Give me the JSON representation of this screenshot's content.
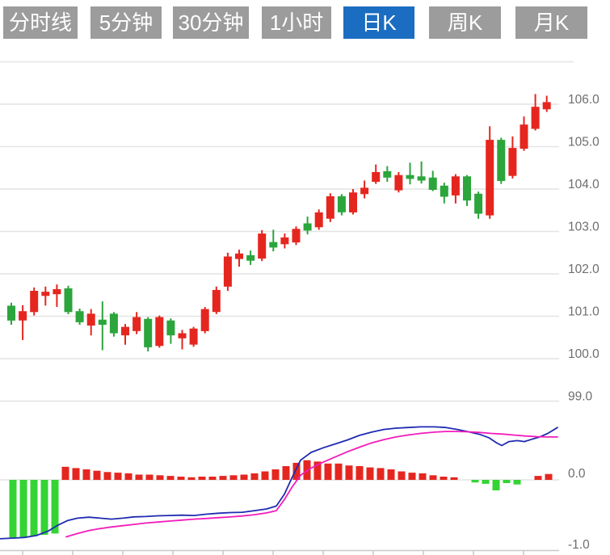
{
  "toolbar": {
    "tabs": [
      {
        "label": "分时线",
        "active": false
      },
      {
        "label": "5分钟",
        "active": false
      },
      {
        "label": "30分钟",
        "active": false
      },
      {
        "label": "1小时",
        "active": false
      },
      {
        "label": "日K",
        "active": true
      },
      {
        "label": "周K",
        "active": false
      },
      {
        "label": "月K",
        "active": false
      }
    ]
  },
  "colors": {
    "bull_red": "#e5261f",
    "bear_green": "#2ba53c",
    "macd_up_red": "#e5261f",
    "macd_down_green": "#33d433",
    "dif_line_blue": "#1f2bb1",
    "dea_line_magenta": "#f31bbb",
    "tab_bg": "#9c9c9c",
    "tab_active_bg": "#1b6dc1",
    "tab_text": "#ffffff",
    "grid": "#e4e4e4",
    "axis": "#c8c8c8",
    "label_text": "#6e6e6e"
  },
  "chart_data": [
    {
      "type": "candlestick",
      "name": "price-kline-pane",
      "interval": "日K",
      "title": "",
      "xlabel": "",
      "ylabel": "",
      "grid": true,
      "legend_position": "none",
      "ylim": [
        98.55,
        107.0
      ],
      "y_ticks": [
        106,
        105,
        104,
        103,
        102,
        101,
        100,
        99
      ],
      "y_axis_labels": [
        "106.0",
        "105.0",
        "104.0",
        "103.0",
        "102.0",
        "101.0",
        "100.0",
        "99.0"
      ],
      "up_color_convention": "red-up-green-down",
      "ohlc": [
        [
          101.25,
          101.32,
          100.8,
          100.9
        ],
        [
          100.9,
          101.26,
          100.44,
          101.12
        ],
        [
          101.1,
          101.68,
          101.02,
          101.6
        ],
        [
          101.48,
          101.7,
          101.25,
          101.58
        ],
        [
          101.52,
          101.75,
          101.22,
          101.64
        ],
        [
          101.66,
          101.72,
          101.05,
          101.1
        ],
        [
          101.12,
          101.18,
          100.8,
          100.86
        ],
        [
          100.78,
          101.17,
          100.55,
          101.06
        ],
        [
          100.92,
          101.35,
          100.2,
          100.8
        ],
        [
          101.06,
          101.1,
          100.52,
          100.6
        ],
        [
          100.55,
          100.82,
          100.33,
          100.75
        ],
        [
          100.65,
          101.1,
          100.58,
          100.98
        ],
        [
          100.94,
          100.98,
          100.17,
          100.27
        ],
        [
          100.3,
          101.02,
          100.26,
          100.98
        ],
        [
          100.9,
          100.95,
          100.35,
          100.55
        ],
        [
          100.48,
          100.68,
          100.22,
          100.6
        ],
        [
          100.33,
          100.75,
          100.28,
          100.71
        ],
        [
          100.65,
          101.22,
          100.6,
          101.17
        ],
        [
          101.1,
          101.7,
          101.05,
          101.62
        ],
        [
          101.7,
          102.5,
          101.6,
          102.41
        ],
        [
          102.35,
          102.57,
          102.17,
          102.48
        ],
        [
          102.44,
          102.55,
          102.21,
          102.31
        ],
        [
          102.36,
          103.03,
          102.3,
          102.95
        ],
        [
          102.75,
          103.04,
          102.53,
          102.62
        ],
        [
          102.7,
          102.95,
          102.6,
          102.86
        ],
        [
          102.74,
          103.12,
          102.68,
          103.06
        ],
        [
          103.19,
          103.35,
          102.93,
          103.02
        ],
        [
          103.1,
          103.52,
          103.04,
          103.45
        ],
        [
          103.3,
          103.9,
          103.22,
          103.83
        ],
        [
          103.83,
          103.88,
          103.38,
          103.45
        ],
        [
          103.45,
          104.0,
          103.4,
          103.92
        ],
        [
          103.88,
          104.2,
          103.78,
          104.03
        ],
        [
          104.17,
          104.58,
          104.12,
          104.4
        ],
        [
          104.42,
          104.54,
          104.17,
          104.27
        ],
        [
          103.97,
          104.4,
          103.92,
          104.33
        ],
        [
          104.33,
          104.62,
          104.11,
          104.24
        ],
        [
          104.3,
          104.65,
          104.13,
          104.2
        ],
        [
          104.27,
          104.43,
          103.95,
          103.98
        ],
        [
          104.08,
          104.15,
          103.66,
          103.82
        ],
        [
          103.85,
          104.35,
          103.66,
          104.3
        ],
        [
          104.3,
          104.33,
          103.6,
          103.73
        ],
        [
          103.89,
          103.94,
          103.3,
          103.42
        ],
        [
          103.38,
          105.48,
          103.3,
          105.16
        ],
        [
          105.16,
          105.21,
          104.12,
          104.19
        ],
        [
          104.31,
          105.24,
          104.25,
          104.97
        ],
        [
          104.95,
          105.71,
          104.9,
          105.52
        ],
        [
          105.42,
          106.24,
          105.38,
          105.94
        ],
        [
          105.88,
          106.2,
          105.82,
          106.05
        ]
      ]
    },
    {
      "type": "bar",
      "name": "macd-histogram-pane",
      "grid": true,
      "ylim": [
        -1.09,
        0.92
      ],
      "y_ticks": [
        0,
        -1
      ],
      "y_axis_labels": [
        "0.0",
        "-1.0"
      ],
      "values": [
        -0.88,
        -0.87,
        -0.86,
        -0.84,
        -0.82,
        0.2,
        0.18,
        0.16,
        0.14,
        0.12,
        0.11,
        0.1,
        0.08,
        0.08,
        0.07,
        0.06,
        0.05,
        0.04,
        0.05,
        0.05,
        0.06,
        0.07,
        0.08,
        0.1,
        0.13,
        0.16,
        0.21,
        0.26,
        0.3,
        0.28,
        0.25,
        0.25,
        0.22,
        0.21,
        0.19,
        0.18,
        0.16,
        0.13,
        0.11,
        0.1,
        0.07,
        0.05,
        0.04,
        0.0,
        -0.04,
        -0.06,
        -0.16,
        -0.05,
        -0.07,
        0.0,
        0.06,
        0.09
      ]
    },
    {
      "type": "line",
      "name": "dif-line",
      "points": [
        [
          0,
          -0.9
        ],
        [
          15,
          -0.89
        ],
        [
          30,
          -0.88
        ],
        [
          45,
          -0.85
        ],
        [
          60,
          -0.78
        ],
        [
          72,
          -0.69
        ],
        [
          84,
          -0.62
        ],
        [
          96,
          -0.585
        ],
        [
          110,
          -0.57
        ],
        [
          124,
          -0.585
        ],
        [
          138,
          -0.6
        ],
        [
          152,
          -0.585
        ],
        [
          166,
          -0.565
        ],
        [
          180,
          -0.56
        ],
        [
          195,
          -0.55
        ],
        [
          210,
          -0.545
        ],
        [
          225,
          -0.54
        ],
        [
          240,
          -0.545
        ],
        [
          255,
          -0.525
        ],
        [
          270,
          -0.51
        ],
        [
          285,
          -0.5
        ],
        [
          300,
          -0.495
        ],
        [
          315,
          -0.47
        ],
        [
          330,
          -0.445
        ],
        [
          342,
          -0.4
        ],
        [
          352,
          -0.22
        ],
        [
          362,
          0.05
        ],
        [
          372,
          0.3
        ],
        [
          385,
          0.42
        ],
        [
          400,
          0.49
        ],
        [
          415,
          0.55
        ],
        [
          430,
          0.61
        ],
        [
          445,
          0.68
        ],
        [
          460,
          0.73
        ],
        [
          475,
          0.77
        ],
        [
          490,
          0.79
        ],
        [
          505,
          0.8
        ],
        [
          520,
          0.81
        ],
        [
          538,
          0.81
        ],
        [
          552,
          0.8
        ],
        [
          566,
          0.77
        ],
        [
          580,
          0.735
        ],
        [
          594,
          0.695
        ],
        [
          605,
          0.645
        ],
        [
          614,
          0.57
        ],
        [
          621,
          0.525
        ],
        [
          630,
          0.585
        ],
        [
          640,
          0.6
        ],
        [
          649,
          0.585
        ],
        [
          658,
          0.62
        ],
        [
          668,
          0.655
        ],
        [
          678,
          0.71
        ],
        [
          690,
          0.8
        ]
      ]
    },
    {
      "type": "line",
      "name": "dea-line",
      "points": [
        [
          82,
          -0.87
        ],
        [
          96,
          -0.82
        ],
        [
          110,
          -0.775
        ],
        [
          124,
          -0.745
        ],
        [
          138,
          -0.72
        ],
        [
          152,
          -0.7
        ],
        [
          166,
          -0.68
        ],
        [
          180,
          -0.66
        ],
        [
          195,
          -0.645
        ],
        [
          210,
          -0.63
        ],
        [
          225,
          -0.615
        ],
        [
          240,
          -0.6
        ],
        [
          255,
          -0.59
        ],
        [
          270,
          -0.578
        ],
        [
          285,
          -0.567
        ],
        [
          300,
          -0.552
        ],
        [
          315,
          -0.532
        ],
        [
          330,
          -0.505
        ],
        [
          342,
          -0.47
        ],
        [
          352,
          -0.3
        ],
        [
          362,
          -0.1
        ],
        [
          372,
          0.07
        ],
        [
          385,
          0.18
        ],
        [
          400,
          0.27
        ],
        [
          415,
          0.35
        ],
        [
          430,
          0.43
        ],
        [
          445,
          0.5
        ],
        [
          460,
          0.565
        ],
        [
          475,
          0.615
        ],
        [
          490,
          0.655
        ],
        [
          505,
          0.685
        ],
        [
          520,
          0.71
        ],
        [
          538,
          0.73
        ],
        [
          552,
          0.74
        ],
        [
          566,
          0.74
        ],
        [
          580,
          0.735
        ],
        [
          594,
          0.725
        ],
        [
          608,
          0.71
        ],
        [
          622,
          0.7
        ],
        [
          636,
          0.685
        ],
        [
          650,
          0.67
        ],
        [
          664,
          0.66
        ],
        [
          676,
          0.655
        ],
        [
          690,
          0.655
        ]
      ]
    }
  ],
  "x_axis": {
    "tick_positions": [
      28,
      90,
      152,
      214,
      276,
      338,
      400,
      462,
      524,
      586,
      648
    ]
  }
}
